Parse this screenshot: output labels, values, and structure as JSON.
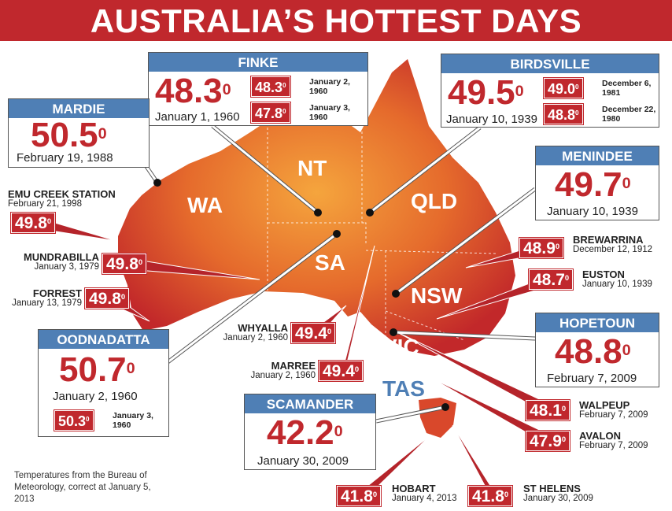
{
  "title": "AUSTRALIA’S HOTTEST DAYS",
  "degree_mark": "0",
  "colors": {
    "title_bg": "#c0282d",
    "header_blue": "#4f7fb5",
    "temp_red": "#c0282d",
    "map_inner": "#f3a23c",
    "map_outer": "#c2282a"
  },
  "states": [
    {
      "id": "wa",
      "label": "WA"
    },
    {
      "id": "nt",
      "label": "NT"
    },
    {
      "id": "qld",
      "label": "QLD"
    },
    {
      "id": "sa",
      "label": "SA"
    },
    {
      "id": "nsw",
      "label": "NSW"
    },
    {
      "id": "vic",
      "label": "VIC"
    },
    {
      "id": "tas",
      "label": "TAS"
    }
  ],
  "boxes": [
    {
      "id": "finke",
      "name": "FINKE",
      "temp": "48.3",
      "date": "January 1, 1960",
      "extra": [
        {
          "temp": "48.3",
          "date": "January 2, 1960"
        },
        {
          "temp": "47.8",
          "date": "January 3, 1960"
        }
      ]
    },
    {
      "id": "birdsville",
      "name": "BIRDSVILLE",
      "temp": "49.5",
      "date": "January 10, 1939",
      "extra": [
        {
          "temp": "49.0",
          "date": "December 6, 1981"
        },
        {
          "temp": "48.8",
          "date": "December 22, 1980"
        }
      ]
    },
    {
      "id": "mardie",
      "name": "MARDIE",
      "temp": "50.5",
      "date": "February 19, 1988",
      "extra": []
    },
    {
      "id": "menindee",
      "name": "MENINDEE",
      "temp": "49.7",
      "date": "January 10, 1939",
      "extra": []
    },
    {
      "id": "oodnadatta",
      "name": "OODNADATTA",
      "temp": "50.7",
      "date": "January 2, 1960",
      "extra": [
        {
          "temp": "50.3",
          "date": "January 3, 1960"
        }
      ]
    },
    {
      "id": "hopetoun",
      "name": "HOPETOUN",
      "temp": "48.8",
      "date": "February 7, 2009",
      "extra": []
    },
    {
      "id": "scamander",
      "name": "SCAMANDER",
      "temp": "42.2",
      "date": "January 30, 2009",
      "extra": []
    }
  ],
  "tags": [
    {
      "id": "emu",
      "name": "EMU CREEK STATION",
      "temp": "49.8",
      "date": "February 21, 1998"
    },
    {
      "id": "mundrabilla",
      "name": "MUNDRABILLA",
      "temp": "49.8",
      "date": "January 3, 1979"
    },
    {
      "id": "forrest",
      "name": "FORREST",
      "temp": "49.8",
      "date": "January 13, 1979"
    },
    {
      "id": "whyalla",
      "name": "WHYALLA",
      "temp": "49.4",
      "date": "January 2, 1960"
    },
    {
      "id": "marree",
      "name": "MARREE",
      "temp": "49.4",
      "date": "January 2, 1960"
    },
    {
      "id": "brewarrina",
      "name": "BREWARRINA",
      "temp": "48.9",
      "date": "December 12, 1912"
    },
    {
      "id": "euston",
      "name": "EUSTON",
      "temp": "48.7",
      "date": "January 10, 1939"
    },
    {
      "id": "walpeup",
      "name": "WALPEUP",
      "temp": "48.1",
      "date": "February 7, 2009"
    },
    {
      "id": "avalon",
      "name": "AVALON",
      "temp": "47.9",
      "date": "February 7, 2009"
    },
    {
      "id": "hobart",
      "name": "HOBART",
      "temp": "41.8",
      "date": "January 4, 2013"
    },
    {
      "id": "sthelens",
      "name": "ST HELENS",
      "temp": "41.8",
      "date": "January 30, 2009"
    }
  ],
  "note": "Temperatures from the Bureau of Meteorology, correct at January 5, 2013"
}
